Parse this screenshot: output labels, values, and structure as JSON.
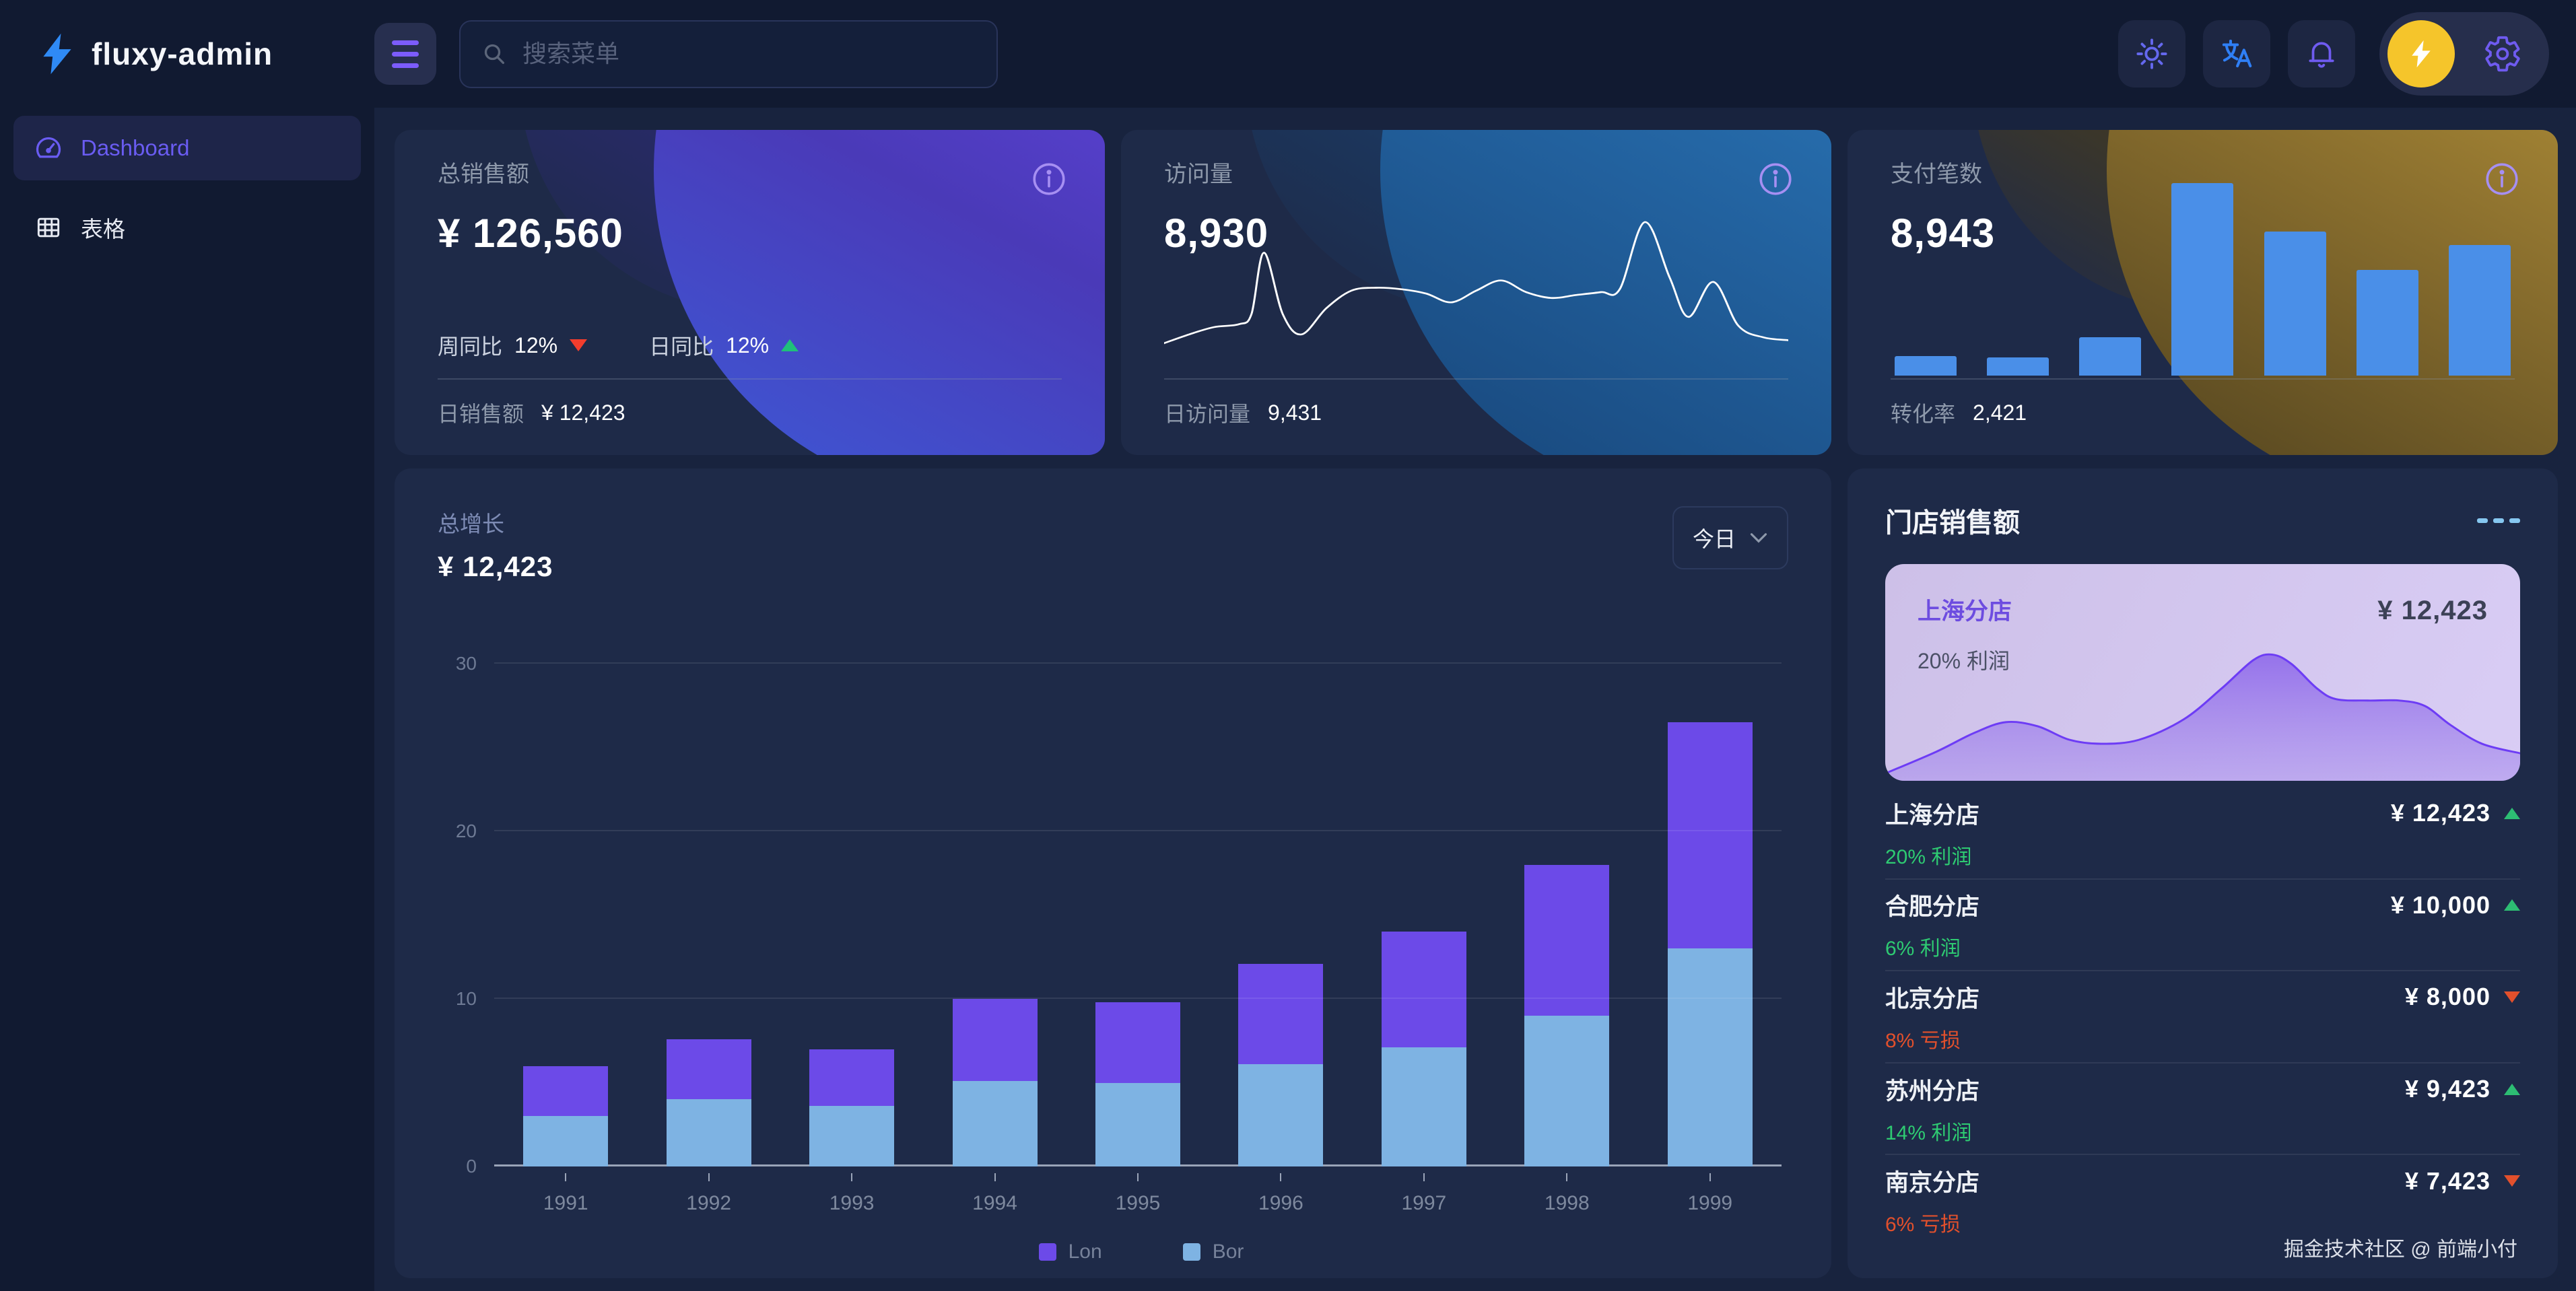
{
  "header": {
    "logo": "fluxy-admin",
    "search_placeholder": "搜索菜单",
    "icons": [
      "menu-icon",
      "search-icon",
      "sun-icon",
      "translate-icon",
      "bell-icon",
      "bolt-avatar-icon",
      "gear-icon"
    ]
  },
  "sidebar": {
    "items": [
      {
        "label": "Dashboard",
        "icon": "gauge-icon",
        "active": true
      },
      {
        "label": "表格",
        "icon": "table-icon",
        "active": false
      }
    ]
  },
  "stat_cards": [
    {
      "label": "总销售额",
      "value": "¥ 126,560",
      "metrics": [
        {
          "label": "周同比",
          "value": "12%",
          "trend": "down"
        },
        {
          "label": "日同比",
          "value": "12%",
          "trend": "up"
        }
      ],
      "footer_label": "日销售额",
      "footer_value": "¥ 12,423",
      "theme": "purple"
    },
    {
      "label": "访问量",
      "value": "8,930",
      "footer_label": "日访问量",
      "footer_value": "9,431",
      "theme": "blue"
    },
    {
      "label": "支付笔数",
      "value": "8,943",
      "footer_label": "转化率",
      "footer_value": "2,421",
      "theme": "gold"
    }
  ],
  "main_chart": {
    "title": "总增长",
    "value": "¥ 12,423",
    "range_label": "今日"
  },
  "store_panel": {
    "title": "门店销售额",
    "highlight": {
      "name": "上海分店",
      "value": "¥ 12,423",
      "profit": "20% 利润"
    },
    "stores": [
      {
        "name": "上海分店",
        "value": "¥ 12,423",
        "percent": "20% 利润",
        "trend": "up"
      },
      {
        "name": "合肥分店",
        "value": "¥ 10,000",
        "percent": "6% 利润",
        "trend": "up"
      },
      {
        "name": "北京分店",
        "value": "¥ 8,000",
        "percent": "8% 亏损",
        "trend": "down"
      },
      {
        "name": "苏州分店",
        "value": "¥ 9,423",
        "percent": "14% 利润",
        "trend": "up"
      },
      {
        "name": "南京分店",
        "value": "¥ 7,423",
        "percent": "6% 亏损",
        "trend": "down"
      }
    ],
    "footer": "掘金技术社区 @ 前端小付"
  },
  "colors": {
    "accent_purple": "#6C4AE8",
    "bar_blue": "#7EB3E3",
    "mini_bar_blue": "#4A8FE8",
    "green": "#2DBD73",
    "red": "#F23D2D",
    "orange_red": "#E2502C",
    "gold": "#F5C52B",
    "link_blue": "#2F8AF5"
  },
  "chart_data": [
    {
      "name": "total_growth",
      "type": "bar",
      "stacked": true,
      "title": "总增长",
      "categories": [
        "1991",
        "1992",
        "1993",
        "1994",
        "1995",
        "1996",
        "1997",
        "1998",
        "1999"
      ],
      "series": [
        {
          "name": "Lon",
          "color": "#6C4AE8",
          "values": [
            3,
            3.6,
            3.4,
            4.9,
            4.8,
            6,
            6.9,
            9,
            13.5
          ]
        },
        {
          "name": "Bor",
          "color": "#7EB3E3",
          "values": [
            3,
            4,
            3.6,
            5.1,
            5,
            6.1,
            7.1,
            9,
            13
          ]
        }
      ],
      "ylim": [
        0,
        30
      ],
      "yticks": [
        0,
        10,
        20,
        30
      ],
      "grid": true,
      "legend_position": "bottom"
    },
    {
      "name": "visits_trend",
      "type": "line",
      "color": "#ffffff",
      "points": [
        [
          0,
          10
        ],
        [
          4,
          16
        ],
        [
          8,
          21
        ],
        [
          12,
          23
        ],
        [
          14,
          30
        ],
        [
          16,
          72
        ],
        [
          19,
          30
        ],
        [
          22,
          16
        ],
        [
          26,
          34
        ],
        [
          30,
          46
        ],
        [
          34,
          48
        ],
        [
          38,
          47
        ],
        [
          42,
          44
        ],
        [
          46,
          38
        ],
        [
          50,
          46
        ],
        [
          54,
          53
        ],
        [
          58,
          45
        ],
        [
          62,
          41
        ],
        [
          66,
          43
        ],
        [
          70,
          45
        ],
        [
          73,
          47
        ],
        [
          77,
          93
        ],
        [
          81,
          55
        ],
        [
          84,
          28
        ],
        [
          88,
          52
        ],
        [
          92,
          22
        ],
        [
          96,
          14
        ],
        [
          100,
          12
        ]
      ]
    },
    {
      "name": "payments_bars",
      "type": "bar",
      "color": "#4A8FE8",
      "values": [
        1,
        0.95,
        2,
        10,
        7.5,
        5.5,
        6.8
      ],
      "ylim": [
        0,
        10
      ]
    },
    {
      "name": "store_area",
      "type": "area",
      "color": "#6D3CF5",
      "points": [
        [
          0,
          2
        ],
        [
          8,
          18
        ],
        [
          14,
          32
        ],
        [
          19,
          40
        ],
        [
          24,
          37
        ],
        [
          29,
          27
        ],
        [
          34,
          24
        ],
        [
          40,
          27
        ],
        [
          47,
          42
        ],
        [
          53,
          65
        ],
        [
          58,
          86
        ],
        [
          61,
          90
        ],
        [
          64,
          83
        ],
        [
          68,
          65
        ],
        [
          71,
          57
        ],
        [
          76,
          56
        ],
        [
          81,
          56
        ],
        [
          85,
          52
        ],
        [
          89,
          38
        ],
        [
          94,
          24
        ],
        [
          100,
          17
        ]
      ]
    }
  ]
}
